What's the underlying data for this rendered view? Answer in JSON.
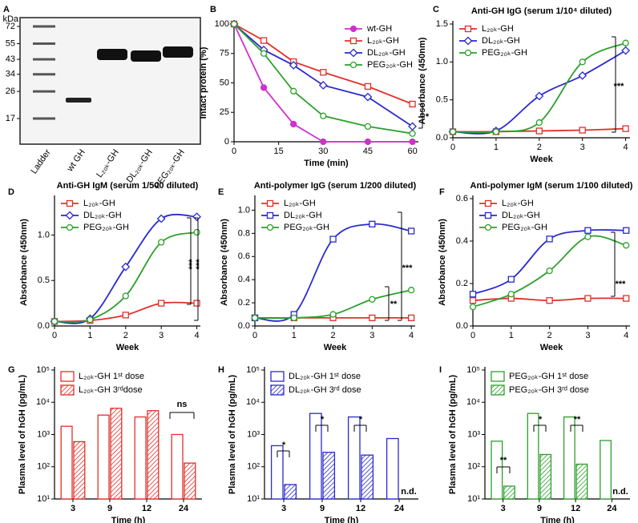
{
  "chart_data": [
    {
      "panel": "A",
      "type": "gel",
      "ylabel": "kDa",
      "yticks": [
        72,
        55,
        43,
        34,
        26,
        17
      ],
      "categories": [
        "Ladder",
        "wt GH",
        "L₂₀ₖ-GH",
        "DL₂₀ₖ-GH",
        "PEG₂₀ₖ-GH"
      ]
    },
    {
      "panel": "B",
      "type": "line",
      "ylabel": "Intact protein (%)",
      "xlabel": "Time (min)",
      "x": [
        0,
        10,
        20,
        30,
        45,
        60
      ],
      "xlim": [
        0,
        62
      ],
      "xticks": [
        0,
        15,
        30,
        45,
        60
      ],
      "ylim": [
        0,
        100
      ],
      "yticks": [
        0,
        25,
        50,
        75,
        100
      ],
      "legend": "upper right",
      "smooth": false,
      "annotations": [
        "*"
      ],
      "series": [
        {
          "name": "wt-GH",
          "color": "#d030d0",
          "marker": "filled-circle",
          "values": [
            100,
            46,
            15,
            0,
            0,
            0
          ]
        },
        {
          "name": "L₂₀ₖ-GH",
          "color": "#e0302a",
          "marker": "square",
          "values": [
            100,
            86,
            68,
            59,
            47,
            32
          ]
        },
        {
          "name": "DL₂₀ₖ-GH",
          "color": "#2a2ad0",
          "marker": "diamond",
          "values": [
            100,
            78,
            65,
            48,
            38,
            13
          ]
        },
        {
          "name": "PEG₂₀ₖ-GH",
          "color": "#2ca02c",
          "marker": "circle",
          "values": [
            100,
            75,
            43,
            22,
            13,
            7
          ]
        }
      ]
    },
    {
      "panel": "C",
      "type": "line",
      "title": "Anti-GH IgG (serum 1/10⁴ diluted)",
      "ylabel": "Absorbance (450nm)",
      "xlabel": "Week",
      "x": [
        0,
        1,
        2,
        3,
        4
      ],
      "xlim": [
        0,
        4.1
      ],
      "xticks": [
        0,
        1,
        2,
        3,
        4
      ],
      "ylim": [
        0,
        1.5
      ],
      "yticks": [
        {
          "value": 0,
          "label": "0.0"
        },
        0.5,
        {
          "value": 1,
          "label": "1.0"
        },
        1.5
      ],
      "legend": "upper left",
      "smooth": true,
      "annotations": [
        "***"
      ],
      "series": [
        {
          "name": "L₂₀ₖ-GH",
          "color": "#e0302a",
          "marker": "square",
          "values": [
            0.08,
            0.08,
            0.09,
            0.1,
            0.12
          ]
        },
        {
          "name": "DL₂₀ₖ-GH",
          "color": "#2a2ad0",
          "marker": "diamond",
          "values": [
            0.08,
            0.09,
            0.55,
            0.82,
            1.15
          ]
        },
        {
          "name": "PEG₂₀ₖ-GH",
          "color": "#2ca02c",
          "marker": "circle",
          "values": [
            0.08,
            0.08,
            0.2,
            1.0,
            1.25
          ]
        }
      ]
    },
    {
      "panel": "D",
      "type": "line",
      "title": "Anti-GH IgM (serum 1/500 diluted)",
      "ylabel": "Absorbance (450nm)",
      "xlabel": "Week",
      "x": [
        0,
        1,
        2,
        3,
        4
      ],
      "xlim": [
        0,
        4.1
      ],
      "xticks": [
        0,
        1,
        2,
        3,
        4
      ],
      "ylim": [
        0,
        1.4
      ],
      "yticks": [
        {
          "value": 0,
          "label": "0.0"
        },
        0.5,
        {
          "value": 1,
          "label": "1.0"
        }
      ],
      "legend": "upper left",
      "smooth": true,
      "annotations": [
        "***",
        "***"
      ],
      "series": [
        {
          "name": "L₂₀ₖ-GH",
          "color": "#e0302a",
          "marker": "square",
          "values": [
            0.05,
            0.06,
            0.12,
            0.25,
            0.25
          ]
        },
        {
          "name": "DL₂₀ₖ-GH",
          "color": "#2a2ad0",
          "marker": "diamond",
          "values": [
            0.05,
            0.08,
            0.65,
            1.18,
            1.2
          ]
        },
        {
          "name": "PEG₂₀ₖ-GH",
          "color": "#2ca02c",
          "marker": "circle",
          "values": [
            0.05,
            0.07,
            0.33,
            0.92,
            1.03
          ]
        }
      ]
    },
    {
      "panel": "E",
      "type": "line",
      "title": "Anti-polymer IgG (serum 1/200 diluted)",
      "ylabel": "Absorbance (450nm)",
      "xlabel": "Week",
      "x": [
        0,
        1,
        2,
        3,
        4
      ],
      "xlim": [
        0,
        4.1
      ],
      "xticks": [
        0,
        1,
        2,
        3,
        4
      ],
      "ylim": [
        0,
        1.1
      ],
      "yticks": [
        {
          "value": 0,
          "label": "0.0"
        },
        0.2,
        0.4,
        0.6,
        0.8,
        {
          "value": 1,
          "label": "1.0"
        }
      ],
      "legend": "upper left",
      "smooth": true,
      "annotations": [
        "***",
        "**"
      ],
      "series": [
        {
          "name": "L₂₀ₖ-GH",
          "color": "#e0302a",
          "marker": "square",
          "values": [
            0.07,
            0.07,
            0.07,
            0.07,
            0.07
          ]
        },
        {
          "name": "DL₂₀ₖ-GH",
          "color": "#2a2ad0",
          "marker": "square",
          "values": [
            0.07,
            0.1,
            0.75,
            0.88,
            0.82
          ]
        },
        {
          "name": "PEG₂₀ₖ-GH",
          "color": "#2ca02c",
          "marker": "circle",
          "values": [
            0.07,
            0.07,
            0.1,
            0.23,
            0.31
          ]
        }
      ]
    },
    {
      "panel": "F",
      "type": "line",
      "title": "Anti-polymer IgM (serum 1/100 diluted)",
      "ylabel": "Absorbance (450nm)",
      "xlabel": "Week",
      "x": [
        0,
        1,
        2,
        3,
        4
      ],
      "xlim": [
        0,
        4.1
      ],
      "xticks": [
        0,
        1,
        2,
        3,
        4
      ],
      "ylim": [
        0,
        0.6
      ],
      "yticks": [
        {
          "value": 0,
          "label": "0.0"
        },
        0.2,
        0.4,
        0.6
      ],
      "legend": "upper left",
      "smooth": true,
      "annotations": [
        "***"
      ],
      "series": [
        {
          "name": "L₂₀ₖ-GH",
          "color": "#e0302a",
          "marker": "square",
          "values": [
            0.12,
            0.13,
            0.12,
            0.13,
            0.13
          ]
        },
        {
          "name": "DL₂₀ₖ-GH",
          "color": "#2a2ad0",
          "marker": "square",
          "values": [
            0.15,
            0.22,
            0.41,
            0.45,
            0.45
          ]
        },
        {
          "name": "PEG₂₀ₖ-GH",
          "color": "#2ca02c",
          "marker": "circle",
          "values": [
            0.09,
            0.15,
            0.26,
            0.42,
            0.38
          ]
        }
      ]
    },
    {
      "panel": "G",
      "type": "bar",
      "ylabel": "Plasma level of hGH (pg/mL)",
      "xlabel": "Time (h)",
      "log": true,
      "categories": [
        "3",
        "9",
        "12",
        "24"
      ],
      "ylim": [
        10,
        100000
      ],
      "yticks": [
        {
          "value": 10,
          "label": "10¹"
        },
        {
          "value": 100,
          "label": "10²"
        },
        {
          "value": 1000,
          "label": "10³"
        },
        {
          "value": 10000,
          "label": "10⁴"
        },
        {
          "value": 100000,
          "label": "10⁵"
        }
      ],
      "legend": "upper left",
      "annotations": [
        "ns"
      ],
      "series": [
        {
          "name": "L₂₀ₖ-GH 1ˢᵗ dose",
          "color": "#e0302a",
          "hatch": false,
          "values": [
            1800,
            4000,
            3500,
            1000
          ]
        },
        {
          "name": "L₂₀ₖ-GH 3ʳᵈdose",
          "color": "#e0302a",
          "hatch": true,
          "values": [
            600,
            6500,
            5500,
            130
          ]
        }
      ]
    },
    {
      "panel": "H",
      "type": "bar",
      "ylabel": "Plasma level of hGH (pg/mL)",
      "xlabel": "Time (h)",
      "log": true,
      "categories": [
        "3",
        "9",
        "12",
        "24"
      ],
      "ylim": [
        10,
        100000
      ],
      "yticks": [
        {
          "value": 10,
          "label": "10¹"
        },
        {
          "value": 100,
          "label": "10²"
        },
        {
          "value": 1000,
          "label": "10³"
        },
        {
          "value": 10000,
          "label": "10⁴"
        },
        {
          "value": 100000,
          "label": "10⁵"
        }
      ],
      "legend": "upper left",
      "annotations": [
        "*",
        "*",
        "*",
        "n.d."
      ],
      "series": [
        {
          "name": "DL₂₀ₖ-GH 1ˢᵗ dose",
          "color": "#2a2ad0",
          "hatch": false,
          "values": [
            450,
            4500,
            3500,
            750
          ]
        },
        {
          "name": "DL₂₀ₖ-GH 3ʳᵈ dose",
          "color": "#2a2ad0",
          "hatch": true,
          "values": [
            28,
            280,
            230,
            null
          ]
        }
      ]
    },
    {
      "panel": "I",
      "type": "bar",
      "ylabel": "Plasma level of hGH (pg/mL)",
      "xlabel": "Time (h)",
      "log": true,
      "categories": [
        "3",
        "9",
        "12",
        "24"
      ],
      "ylim": [
        10,
        100000
      ],
      "yticks": [
        {
          "value": 10,
          "label": "10¹"
        },
        {
          "value": 100,
          "label": "10²"
        },
        {
          "value": 1000,
          "label": "10³"
        },
        {
          "value": 10000,
          "label": "10⁴"
        },
        {
          "value": 100000,
          "label": "10⁵"
        }
      ],
      "legend": "upper left",
      "annotations": [
        "**",
        "*",
        "**",
        "n.d."
      ],
      "series": [
        {
          "name": "PEG₂₀ₖ-GH 1ˢᵗ dose",
          "color": "#2ca02c",
          "hatch": false,
          "values": [
            620,
            4500,
            3500,
            650
          ]
        },
        {
          "name": "PEG₂₀ₖ-GH 3ʳᵈ dose",
          "color": "#2ca02c",
          "hatch": true,
          "values": [
            25,
            240,
            120,
            null
          ]
        }
      ]
    }
  ]
}
